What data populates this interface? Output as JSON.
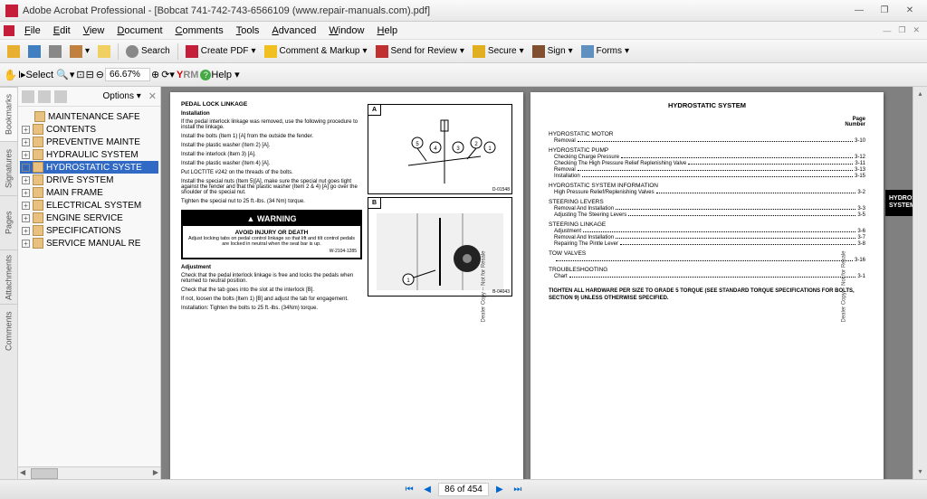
{
  "title": "Adobe Acrobat Professional - [Bobcat 741-742-743-6566109 (www.repair-manuals.com).pdf]",
  "menu": [
    "File",
    "Edit",
    "View",
    "Document",
    "Comments",
    "Tools",
    "Advanced",
    "Window",
    "Help"
  ],
  "toolbar": {
    "search": "Search",
    "createpdf": "Create PDF",
    "comment": "Comment & Markup",
    "send": "Send for Review",
    "secure": "Secure",
    "sign": "Sign",
    "forms": "Forms",
    "select": "Select",
    "zoom": "66.67%",
    "help": "Help"
  },
  "sidetabs": [
    "Bookmarks",
    "Signatures",
    "Pages",
    "Attachments",
    "Comments"
  ],
  "bookmarks": {
    "options": "Options",
    "items": [
      {
        "text": "MAINTENANCE SAFE",
        "exp": false,
        "sel": false
      },
      {
        "text": "CONTENTS",
        "exp": true,
        "sel": false
      },
      {
        "text": "PREVENTIVE MAINTE",
        "exp": true,
        "sel": false
      },
      {
        "text": "HYDRAULIC SYSTEM",
        "exp": true,
        "sel": false
      },
      {
        "text": "HYDROSTATIC SYSTE",
        "exp": true,
        "sel": true
      },
      {
        "text": "DRIVE SYSTEM",
        "exp": true,
        "sel": false
      },
      {
        "text": "MAIN FRAME",
        "exp": true,
        "sel": false
      },
      {
        "text": "ELECTRICAL SYSTEM",
        "exp": true,
        "sel": false
      },
      {
        "text": "ENGINE SERVICE",
        "exp": true,
        "sel": false
      },
      {
        "text": "SPECIFICATIONS",
        "exp": true,
        "sel": false
      },
      {
        "text": "SERVICE MANUAL RE",
        "exp": true,
        "sel": false
      }
    ]
  },
  "leftpage": {
    "h1": "PEDAL LOCK LINKAGE",
    "h2": "Installation",
    "p1": "If the pedal interlock linkage was removed, use the following procedure to install the linkage.",
    "p2": "Install the bolts (Item 1) [A] from the outside the fender.",
    "p3": "Install the plastic washer (Item 2) [A].",
    "p4": "Install the interlock (Item 3) [A].",
    "p5": "Install the plastic washer (Item 4) [A].",
    "p6": "Put LOCTITE #242 on the threads of the bolts.",
    "p7": "Install the special nuts (Item 5)[A], make sure the special nut goes tight against the fender and that the plastic washer (Item 2 & 4) [A] go over the shoulder of the special nut.",
    "p8": "Tighten the special nut to 25 ft.-lbs. (34 Nm) torque.",
    "warnhead": "▲ WARNING",
    "warnbold": "AVOID INJURY OR DEATH",
    "warnbody": "Adjust locking tabs on pedal control linkage so that lift and tilt control pedals are locked in neutral when the seat bar is up.",
    "warnid": "W-2104-1285",
    "h3": "Adjustment",
    "p9": "Check that the pedal interlock linkage is free and locks the pedals when returned to neutral position.",
    "p10": "Check that the tab goes into the slot at the interlock [B].",
    "p11": "If not, loosen the bolts (Item 1) [B] and adjust the tab for engagement.",
    "p12": "Installation: Tighten the bolts to 25 ft.-lbs. (34Nm) torque.",
    "figA": "A",
    "figAid": "D-01548",
    "figB": "B",
    "figBid": "B-04043",
    "vtext": "Dealer Copy -- Not for Resale"
  },
  "rightpage": {
    "title": "HYDROSTATIC SYSTEM",
    "pagehead": "Page\nNumber",
    "tab": "HYDROSTATIC\nSYSTEM",
    "vtext": "Dealer Copy -- Not for Resale",
    "sections": [
      {
        "head": "HYDROSTATIC MOTOR",
        "items": [
          {
            "l": "Removal",
            "p": "3-10"
          }
        ]
      },
      {
        "head": "HYDROSTATIC PUMP",
        "items": [
          {
            "l": "Checking Charge Pressure",
            "p": "3-12"
          },
          {
            "l": "Checking The High Pressure Relief Replenishing Valve",
            "p": "3-11"
          },
          {
            "l": "Removal",
            "p": "3-13"
          },
          {
            "l": "Installation",
            "p": "3-15"
          }
        ]
      },
      {
        "head": "HYDROSTATIC SYSTEM INFORMATION",
        "items": [
          {
            "l": "High Pressure Relief/Replenishing Valves",
            "p": "3-2"
          }
        ]
      },
      {
        "head": "STEERING LEVERS",
        "items": [
          {
            "l": "Removal And Installation",
            "p": "3-3"
          },
          {
            "l": "Adjusting The Steering Levers",
            "p": "3-5"
          }
        ]
      },
      {
        "head": "STEERING LINKAGE",
        "items": [
          {
            "l": "Adjustment",
            "p": "3-6"
          },
          {
            "l": "Removal And Installation",
            "p": "3-7"
          },
          {
            "l": "Repairing The Pintle Lever",
            "p": "3-8"
          }
        ]
      },
      {
        "head": "TOW VALVES",
        "items": [
          {
            "l": "",
            "p": "3-16"
          }
        ]
      },
      {
        "head": "TROUBLESHOOTING",
        "items": [
          {
            "l": "Chart",
            "p": "3-1"
          }
        ]
      }
    ],
    "footnote": "TIGHTEN ALL HARDWARE PER SIZE TO GRADE 5 TORQUE (SEE STANDARD TORQUE SPECIFICATIONS FOR BOLTS, SECTION 9) UNLESS OTHERWISE SPECIFIED."
  },
  "status": {
    "page": "86 of 454"
  }
}
